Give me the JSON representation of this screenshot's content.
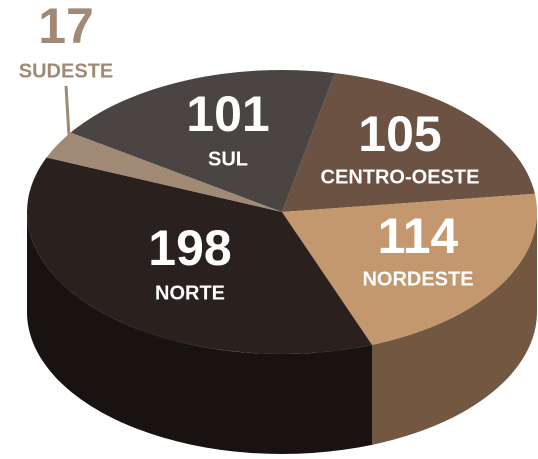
{
  "chart_data": {
    "type": "pie",
    "categories": [
      "SUL",
      "CENTRO-OESTE",
      "NORDESTE",
      "NORTE",
      "SUDESTE"
    ],
    "values": [
      101,
      105,
      114,
      198,
      17
    ],
    "colors": [
      "#4a4543",
      "#6b5242",
      "#c4986f",
      "#2a201d",
      "#a08a76"
    ]
  }
}
